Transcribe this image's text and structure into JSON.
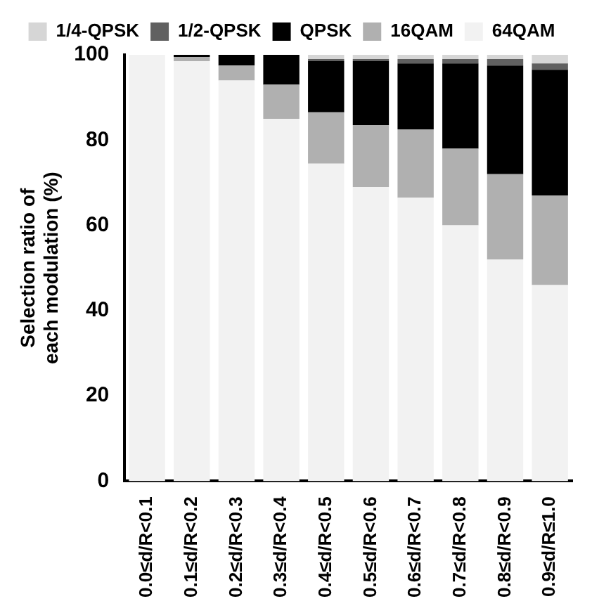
{
  "chart_data": {
    "type": "bar",
    "stacked": true,
    "ylabel": "Selection ratio of\neach modulation (%)",
    "categories": [
      "0.0≤d/R<0.1",
      "0.1≤d/R<0.2",
      "0.2≤d/R<0.3",
      "0.3≤d/R<0.4",
      "0.4≤d/R<0.5",
      "0.5≤d/R<0.6",
      "0.6≤d/R<0.7",
      "0.7≤d/R<0.8",
      "0.8≤d/R<0.9",
      "0.9≤d/R≤1.0"
    ],
    "series": [
      {
        "name": "64QAM",
        "color": "#f2f2f2",
        "values": [
          100,
          98.5,
          94,
          85,
          74.5,
          69,
          66.5,
          60,
          52,
          46
        ]
      },
      {
        "name": "16QAM",
        "color": "#b0b0b0",
        "values": [
          0,
          1,
          3.5,
          8,
          12,
          14.5,
          16,
          18,
          20,
          21
        ]
      },
      {
        "name": "QPSK",
        "color": "#000000",
        "values": [
          0,
          0.5,
          2.5,
          7,
          12,
          15,
          15.5,
          20,
          25.5,
          29.5
        ]
      },
      {
        "name": "1/2-QPSK",
        "color": "#606060",
        "values": [
          0,
          0,
          0,
          0,
          0.5,
          0.5,
          1,
          1,
          1.5,
          1.5
        ]
      },
      {
        "name": "1/4-QPSK",
        "color": "#d6d6d6",
        "values": [
          0,
          0,
          0,
          0,
          1,
          1,
          1,
          1,
          1,
          2
        ]
      }
    ],
    "ylim": [
      0,
      100
    ],
    "yticks": [
      0,
      20,
      40,
      60,
      80,
      100
    ],
    "grid": false,
    "legend": "top"
  }
}
